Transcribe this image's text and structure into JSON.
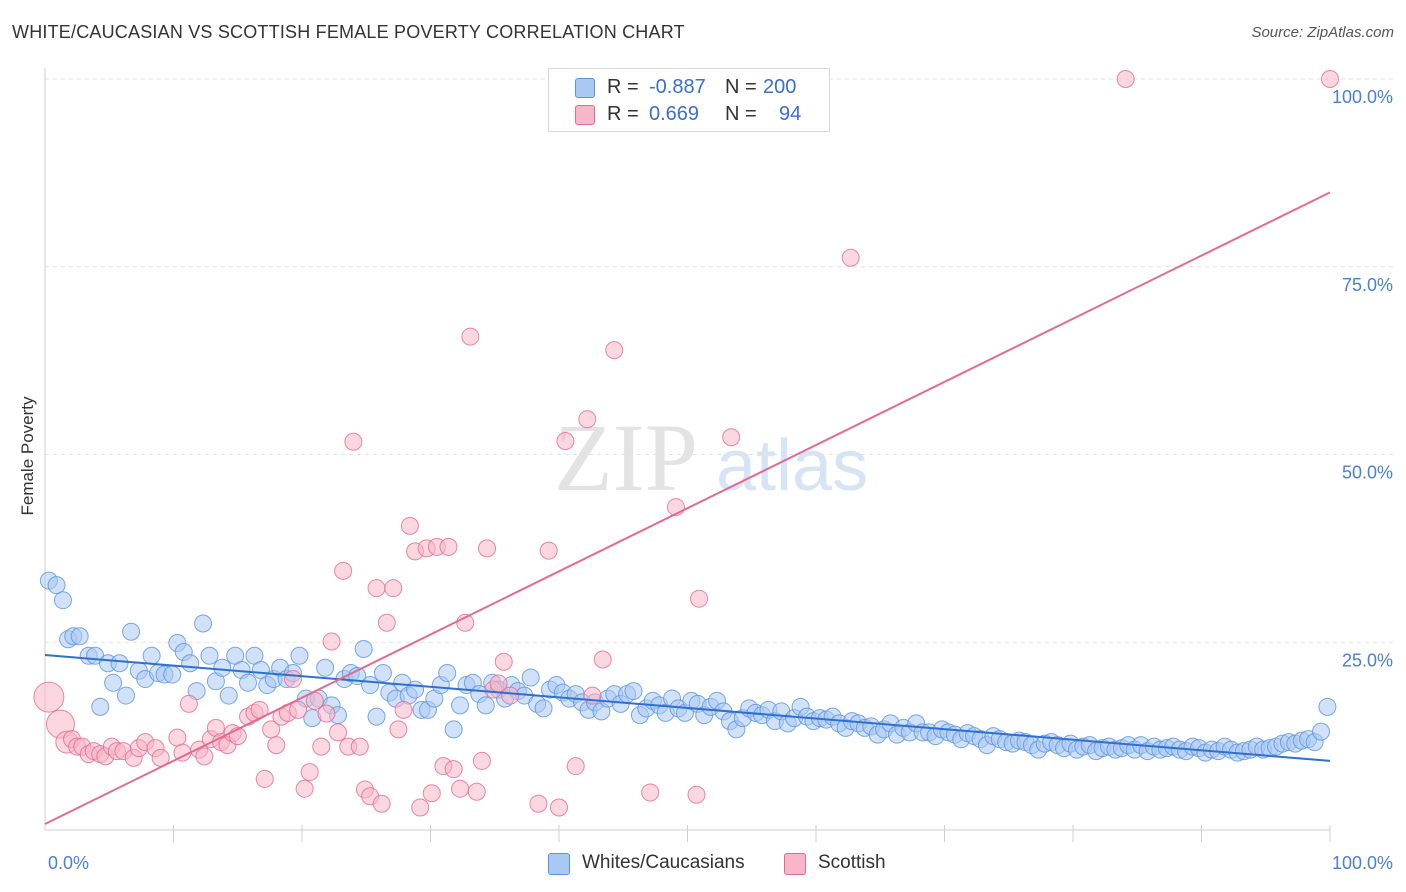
{
  "title": "WHITE/CAUCASIAN VS SCOTTISH FEMALE POVERTY CORRELATION CHART",
  "source": "Source: ZipAtlas.com",
  "watermark": {
    "zip": "ZIP",
    "atlas": "atlas"
  },
  "stats": {
    "rows": [
      {
        "r_label": "R =",
        "r_value": "-0.887",
        "n_label": "N =",
        "n_value": "200",
        "color": "#a9c8f2"
      },
      {
        "r_label": "R =",
        "r_value": "0.669",
        "n_label": "N =",
        "n_value": "94",
        "color": "#f7b6c9"
      }
    ]
  },
  "legend": [
    {
      "label": "Whites/Caucasians",
      "color": "#a9c8f2"
    },
    {
      "label": "Scottish",
      "color": "#f7b6c9"
    }
  ],
  "chart_data": {
    "type": "scatter",
    "title": "WHITE/CAUCASIAN VS SCOTTISH FEMALE POVERTY CORRELATION CHART",
    "xlabel": "",
    "ylabel": "Female Poverty",
    "xlim": [
      0,
      100
    ],
    "ylim": [
      0,
      100
    ],
    "x_tick_labels": [
      "0.0%",
      "100.0%"
    ],
    "y_tick_labels": [
      "25.0%",
      "50.0%",
      "75.0%",
      "100.0%"
    ],
    "y_ticks": [
      25,
      50,
      75,
      100
    ],
    "grid": true,
    "legend_position": "bottom-center",
    "series": [
      {
        "name": "Whites/Caucasians",
        "color": "#5b93e0",
        "fill": "#a9c8f2",
        "trend": {
          "x": [
            0,
            100
          ],
          "y": [
            23.3,
            9.2
          ]
        },
        "points": [
          [
            0.3,
            33.2
          ],
          [
            0.9,
            32.6
          ],
          [
            1.4,
            30.6
          ],
          [
            1.8,
            25.4
          ],
          [
            2.2,
            25.8
          ],
          [
            2.7,
            25.8
          ],
          [
            3.4,
            23.2
          ],
          [
            3.9,
            23.2
          ],
          [
            4.3,
            16.4
          ],
          [
            4.9,
            22.2
          ],
          [
            5.3,
            19.6
          ],
          [
            5.8,
            22.2
          ],
          [
            6.3,
            17.9
          ],
          [
            6.7,
            26.4
          ],
          [
            7.3,
            21.2
          ],
          [
            7.8,
            20.1
          ],
          [
            8.3,
            23.2
          ],
          [
            8.8,
            20.9
          ],
          [
            9.3,
            20.7
          ],
          [
            9.9,
            20.7
          ],
          [
            10.3,
            24.9
          ],
          [
            10.8,
            23.7
          ],
          [
            11.3,
            22.2
          ],
          [
            11.8,
            18.5
          ],
          [
            12.3,
            27.5
          ],
          [
            12.8,
            23.2
          ],
          [
            13.3,
            19.8
          ],
          [
            13.8,
            21.6
          ],
          [
            14.3,
            17.9
          ],
          [
            14.8,
            23.2
          ],
          [
            15.3,
            21.3
          ],
          [
            15.8,
            19.6
          ],
          [
            16.3,
            23.2
          ],
          [
            16.8,
            21.3
          ],
          [
            17.3,
            19.3
          ],
          [
            17.8,
            20.1
          ],
          [
            18.3,
            21.6
          ],
          [
            18.8,
            20.1
          ],
          [
            19.3,
            20.9
          ],
          [
            19.8,
            23.2
          ],
          [
            20.3,
            17.5
          ],
          [
            20.8,
            14.9
          ],
          [
            21.3,
            17.5
          ],
          [
            21.8,
            21.6
          ],
          [
            22.3,
            16.6
          ],
          [
            22.8,
            15.3
          ],
          [
            23.3,
            20.1
          ],
          [
            23.8,
            20.9
          ],
          [
            24.3,
            20.5
          ],
          [
            24.8,
            24.1
          ],
          [
            25.3,
            19.3
          ],
          [
            25.8,
            15.1
          ],
          [
            26.3,
            20.9
          ],
          [
            26.8,
            18.3
          ],
          [
            27.3,
            17.5
          ],
          [
            27.8,
            19.6
          ],
          [
            28.3,
            17.9
          ],
          [
            28.8,
            18.7
          ],
          [
            29.3,
            16.0
          ],
          [
            29.8,
            16.0
          ],
          [
            30.3,
            17.5
          ],
          [
            30.8,
            19.3
          ],
          [
            31.3,
            20.9
          ],
          [
            31.8,
            13.4
          ],
          [
            32.3,
            16.6
          ],
          [
            32.8,
            19.3
          ],
          [
            33.3,
            19.6
          ],
          [
            33.8,
            18.1
          ],
          [
            34.3,
            16.6
          ],
          [
            34.8,
            19.6
          ],
          [
            35.3,
            18.7
          ],
          [
            35.8,
            17.5
          ],
          [
            36.3,
            19.3
          ],
          [
            36.8,
            18.5
          ],
          [
            37.3,
            17.9
          ],
          [
            37.8,
            20.3
          ],
          [
            38.3,
            16.8
          ],
          [
            38.8,
            16.2
          ],
          [
            39.3,
            18.7
          ],
          [
            39.8,
            19.3
          ],
          [
            40.3,
            18.3
          ],
          [
            40.8,
            17.5
          ],
          [
            41.3,
            18.1
          ],
          [
            41.8,
            17.0
          ],
          [
            42.3,
            16.0
          ],
          [
            42.8,
            17.0
          ],
          [
            43.3,
            15.8
          ],
          [
            43.8,
            17.5
          ],
          [
            44.3,
            18.1
          ],
          [
            44.8,
            16.8
          ],
          [
            45.3,
            18.1
          ],
          [
            45.8,
            18.5
          ],
          [
            46.3,
            15.3
          ],
          [
            46.8,
            16.2
          ],
          [
            47.3,
            17.2
          ],
          [
            47.8,
            16.6
          ],
          [
            48.3,
            15.6
          ],
          [
            48.8,
            17.5
          ],
          [
            49.3,
            16.2
          ],
          [
            49.8,
            15.6
          ],
          [
            50.3,
            17.2
          ],
          [
            50.8,
            16.8
          ],
          [
            51.3,
            15.3
          ],
          [
            51.8,
            16.4
          ],
          [
            52.3,
            17.2
          ],
          [
            52.8,
            15.8
          ],
          [
            53.3,
            14.5
          ],
          [
            53.8,
            13.4
          ],
          [
            54.3,
            14.9
          ],
          [
            54.8,
            16.2
          ],
          [
            55.3,
            15.6
          ],
          [
            55.8,
            15.3
          ],
          [
            56.3,
            16.0
          ],
          [
            56.8,
            14.5
          ],
          [
            57.3,
            15.8
          ],
          [
            57.8,
            14.2
          ],
          [
            58.3,
            14.9
          ],
          [
            58.8,
            16.4
          ],
          [
            59.3,
            15.1
          ],
          [
            59.8,
            14.5
          ],
          [
            60.3,
            14.9
          ],
          [
            60.8,
            14.7
          ],
          [
            61.3,
            15.1
          ],
          [
            61.8,
            14.2
          ],
          [
            62.3,
            13.6
          ],
          [
            62.8,
            14.5
          ],
          [
            63.3,
            14.2
          ],
          [
            63.8,
            13.6
          ],
          [
            64.3,
            13.8
          ],
          [
            64.8,
            12.7
          ],
          [
            65.3,
            13.4
          ],
          [
            65.8,
            14.2
          ],
          [
            66.3,
            12.7
          ],
          [
            66.8,
            13.6
          ],
          [
            67.3,
            13.0
          ],
          [
            67.8,
            14.2
          ],
          [
            68.3,
            13.0
          ],
          [
            68.8,
            13.0
          ],
          [
            69.3,
            12.5
          ],
          [
            69.8,
            13.4
          ],
          [
            70.3,
            13.0
          ],
          [
            70.8,
            12.7
          ],
          [
            71.3,
            12.1
          ],
          [
            71.8,
            12.9
          ],
          [
            72.3,
            12.5
          ],
          [
            72.8,
            12.1
          ],
          [
            73.3,
            11.3
          ],
          [
            73.8,
            12.5
          ],
          [
            74.3,
            12.1
          ],
          [
            74.8,
            11.7
          ],
          [
            75.3,
            11.5
          ],
          [
            75.8,
            11.9
          ],
          [
            76.3,
            11.7
          ],
          [
            76.8,
            11.3
          ],
          [
            77.3,
            10.7
          ],
          [
            77.8,
            11.5
          ],
          [
            78.3,
            11.7
          ],
          [
            78.8,
            11.3
          ],
          [
            79.3,
            10.9
          ],
          [
            79.8,
            11.5
          ],
          [
            80.3,
            10.7
          ],
          [
            80.8,
            11.1
          ],
          [
            81.3,
            11.3
          ],
          [
            81.8,
            10.5
          ],
          [
            82.3,
            10.9
          ],
          [
            82.8,
            11.1
          ],
          [
            83.3,
            10.7
          ],
          [
            83.8,
            10.9
          ],
          [
            84.3,
            11.3
          ],
          [
            84.8,
            10.7
          ],
          [
            85.3,
            11.3
          ],
          [
            85.8,
            10.5
          ],
          [
            86.3,
            11.1
          ],
          [
            86.8,
            10.7
          ],
          [
            87.3,
            10.9
          ],
          [
            87.8,
            11.1
          ],
          [
            88.3,
            10.7
          ],
          [
            88.8,
            10.5
          ],
          [
            89.3,
            11.1
          ],
          [
            89.8,
            10.9
          ],
          [
            90.3,
            10.3
          ],
          [
            90.8,
            10.7
          ],
          [
            91.3,
            10.5
          ],
          [
            91.8,
            11.1
          ],
          [
            92.3,
            10.7
          ],
          [
            92.8,
            10.3
          ],
          [
            93.3,
            10.5
          ],
          [
            93.8,
            10.7
          ],
          [
            94.3,
            11.1
          ],
          [
            94.8,
            10.7
          ],
          [
            95.3,
            10.9
          ],
          [
            95.8,
            11.1
          ],
          [
            96.3,
            11.5
          ],
          [
            96.8,
            11.7
          ],
          [
            97.3,
            11.5
          ],
          [
            97.8,
            11.9
          ],
          [
            98.3,
            12.1
          ],
          [
            98.8,
            11.7
          ],
          [
            99.3,
            13.1
          ],
          [
            99.8,
            16.4
          ]
        ]
      },
      {
        "name": "Scottish",
        "color": "#e36a92",
        "fill": "#f7b6c9",
        "trend": {
          "x": [
            0,
            100
          ],
          "y": [
            0.8,
            84.9
          ]
        },
        "points": [
          [
            0.3,
            17.7
          ],
          [
            1.2,
            14.1
          ],
          [
            1.7,
            11.7
          ],
          [
            2.1,
            12.1
          ],
          [
            2.5,
            11.1
          ],
          [
            2.9,
            11.1
          ],
          [
            3.4,
            10.1
          ],
          [
            3.8,
            10.5
          ],
          [
            4.3,
            10.1
          ],
          [
            4.7,
            9.8
          ],
          [
            5.2,
            11.1
          ],
          [
            5.6,
            10.5
          ],
          [
            6.1,
            10.5
          ],
          [
            6.9,
            9.6
          ],
          [
            7.3,
            10.9
          ],
          [
            7.8,
            11.7
          ],
          [
            8.6,
            10.9
          ],
          [
            9.0,
            9.6
          ],
          [
            10.3,
            12.3
          ],
          [
            10.7,
            10.3
          ],
          [
            11.2,
            16.8
          ],
          [
            12.0,
            10.7
          ],
          [
            12.4,
            9.8
          ],
          [
            12.9,
            12.1
          ],
          [
            13.3,
            13.6
          ],
          [
            13.7,
            11.7
          ],
          [
            14.2,
            11.3
          ],
          [
            14.6,
            12.9
          ],
          [
            15.0,
            12.5
          ],
          [
            15.8,
            15.1
          ],
          [
            16.3,
            15.6
          ],
          [
            16.7,
            16.0
          ],
          [
            17.1,
            6.8
          ],
          [
            17.6,
            13.4
          ],
          [
            18.0,
            11.3
          ],
          [
            18.4,
            15.1
          ],
          [
            18.9,
            15.6
          ],
          [
            19.3,
            20.1
          ],
          [
            19.7,
            16.0
          ],
          [
            20.2,
            5.5
          ],
          [
            20.6,
            7.7
          ],
          [
            21.0,
            17.2
          ],
          [
            21.5,
            11.1
          ],
          [
            21.9,
            15.5
          ],
          [
            22.3,
            25.1
          ],
          [
            22.8,
            13.0
          ],
          [
            23.2,
            34.5
          ],
          [
            23.6,
            11.1
          ],
          [
            24.0,
            51.7
          ],
          [
            24.5,
            11.1
          ],
          [
            24.9,
            5.4
          ],
          [
            25.3,
            4.5
          ],
          [
            25.8,
            32.2
          ],
          [
            26.2,
            3.5
          ],
          [
            26.6,
            27.6
          ],
          [
            27.1,
            32.2
          ],
          [
            27.5,
            13.4
          ],
          [
            27.9,
            16.0
          ],
          [
            28.4,
            40.5
          ],
          [
            28.8,
            37.1
          ],
          [
            29.2,
            3.0
          ],
          [
            29.7,
            37.5
          ],
          [
            30.1,
            4.9
          ],
          [
            30.5,
            37.7
          ],
          [
            31.0,
            8.5
          ],
          [
            31.4,
            37.7
          ],
          [
            31.8,
            8.1
          ],
          [
            32.3,
            5.5
          ],
          [
            32.7,
            27.6
          ],
          [
            33.1,
            65.7
          ],
          [
            33.6,
            5.1
          ],
          [
            34.0,
            9.2
          ],
          [
            34.4,
            37.5
          ],
          [
            34.9,
            18.7
          ],
          [
            35.3,
            19.5
          ],
          [
            35.7,
            22.4
          ],
          [
            36.2,
            17.9
          ],
          [
            38.4,
            3.5
          ],
          [
            39.2,
            37.2
          ],
          [
            40.0,
            3.0
          ],
          [
            40.5,
            51.8
          ],
          [
            41.3,
            8.5
          ],
          [
            42.2,
            54.7
          ],
          [
            42.6,
            17.9
          ],
          [
            43.4,
            22.7
          ],
          [
            44.3,
            63.9
          ],
          [
            47.1,
            5.0
          ],
          [
            49.1,
            43.0
          ],
          [
            50.7,
            4.7
          ],
          [
            50.9,
            30.8
          ],
          [
            53.4,
            52.3
          ],
          [
            62.7,
            76.2
          ],
          [
            84.1,
            100.0
          ],
          [
            100.0,
            100.0
          ]
        ]
      }
    ]
  }
}
